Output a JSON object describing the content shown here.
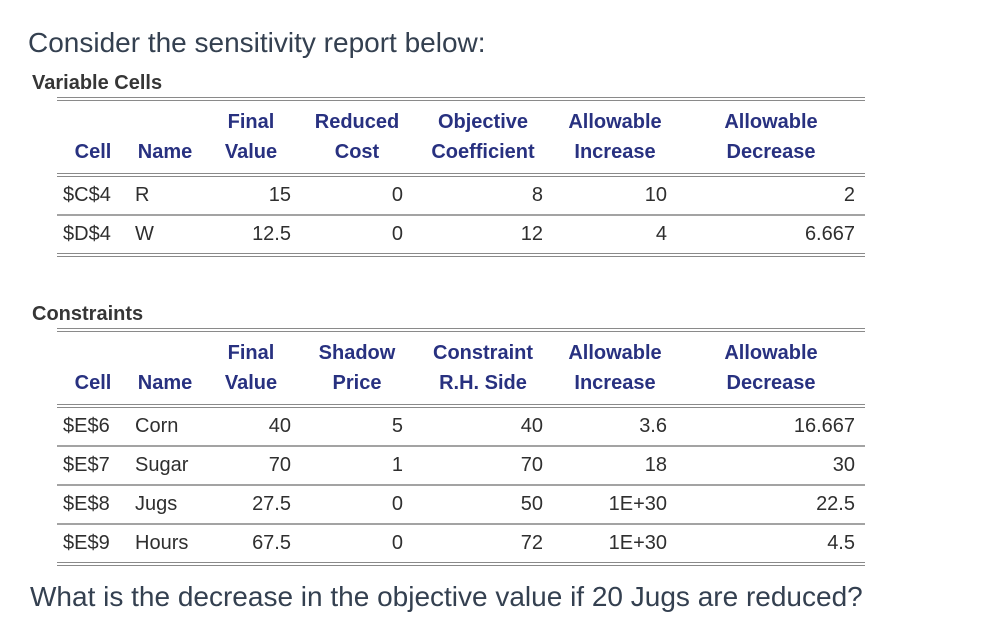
{
  "page": {
    "intro": "Consider the sensitivity report below:",
    "question": "What is the decrease in the objective value if 20 Jugs are reduced?"
  },
  "colors": {
    "body_text": "#344050",
    "table_header_text": "#283180",
    "table_data_text": "#2F2F2F",
    "section_label_text": "#363636",
    "rule_major": "#8A8A8A",
    "rule_minor": "#A3A3A3",
    "background": "#FFFFFF"
  },
  "variable_cells": {
    "section_label": "Variable Cells",
    "header_top": [
      "",
      "",
      "Final",
      "Reduced",
      "Objective",
      "Allowable",
      "Allowable"
    ],
    "header_bottom": [
      "Cell",
      "Name",
      "Value",
      "Cost",
      "Coefficient",
      "Increase",
      "Decrease"
    ],
    "rows": [
      {
        "cell": "$C$4",
        "name": "R",
        "final_value": "15",
        "reduced_cost": "0",
        "objective_coefficient": "8",
        "allowable_increase": "10",
        "allowable_decrease": "2"
      },
      {
        "cell": "$D$4",
        "name": "W",
        "final_value": "12.5",
        "reduced_cost": "0",
        "objective_coefficient": "12",
        "allowable_increase": "4",
        "allowable_decrease": "6.667"
      }
    ]
  },
  "constraints": {
    "section_label": "Constraints",
    "header_top": [
      "",
      "",
      "Final",
      "Shadow",
      "Constraint",
      "Allowable",
      "Allowable"
    ],
    "header_bottom": [
      "Cell",
      "Name",
      "Value",
      "Price",
      "R.H. Side",
      "Increase",
      "Decrease"
    ],
    "rows": [
      {
        "cell": "$E$6",
        "name": "Corn",
        "final_value": "40",
        "shadow_price": "5",
        "rhs": "40",
        "allowable_increase": "3.6",
        "allowable_decrease": "16.667"
      },
      {
        "cell": "$E$7",
        "name": "Sugar",
        "final_value": "70",
        "shadow_price": "1",
        "rhs": "70",
        "allowable_increase": "18",
        "allowable_decrease": "30"
      },
      {
        "cell": "$E$8",
        "name": "Jugs",
        "final_value": "27.5",
        "shadow_price": "0",
        "rhs": "50",
        "allowable_increase": "1E+30",
        "allowable_decrease": "22.5"
      },
      {
        "cell": "$E$9",
        "name": "Hours",
        "final_value": "67.5",
        "shadow_price": "0",
        "rhs": "72",
        "allowable_increase": "1E+30",
        "allowable_decrease": "4.5"
      }
    ]
  }
}
